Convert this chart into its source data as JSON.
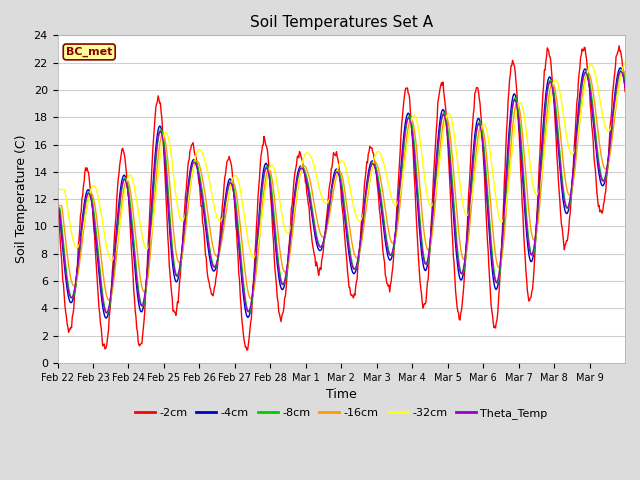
{
  "title": "Soil Temperatures Set A",
  "xlabel": "Time",
  "ylabel": "Soil Temperature (C)",
  "ylim": [
    0,
    24
  ],
  "background_color": "#dcdcdc",
  "plot_bg": "#ffffff",
  "annotation_text": "BC_met",
  "annotation_bg": "#ffff99",
  "annotation_edge": "#8B0000",
  "annotation_text_color": "#8B0000",
  "series_colors": [
    "#ff0000",
    "#0000cc",
    "#00cc00",
    "#ff9900",
    "#ffff00",
    "#9900cc"
  ],
  "series_labels": [
    "-2cm",
    "-4cm",
    "-8cm",
    "-16cm",
    "-32cm",
    "Theta_Temp"
  ],
  "xtick_labels": [
    "Feb 22",
    "Feb 23",
    "Feb 24",
    "Feb 25",
    "Feb 26",
    "Feb 27",
    "Feb 28",
    "Mar 1",
    "Mar 2",
    "Mar 3",
    "Mar 4",
    "Mar 5",
    "Mar 6",
    "Mar 7",
    "Mar 8",
    "Mar 9"
  ],
  "ytick_positions": [
    0,
    2,
    4,
    6,
    8,
    10,
    12,
    14,
    16,
    18,
    20,
    22,
    24
  ],
  "line_width": 1.0,
  "legend_fontsize": 8,
  "title_fontsize": 11,
  "axis_fontsize": 9,
  "tick_fontsize": 7
}
